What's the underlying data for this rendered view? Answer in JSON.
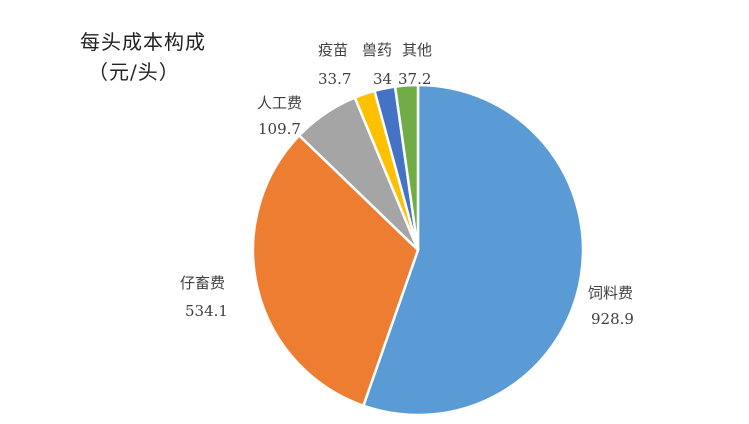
{
  "chart_data": {
    "type": "pie",
    "title": "每头成本构成",
    "subtitle": "（元/头）",
    "categories": [
      "饲料费",
      "仔畜费",
      "人工费",
      "疫苗",
      "兽药",
      "其他"
    ],
    "values": [
      928.9,
      534.1,
      109.7,
      33.7,
      34,
      37.2
    ],
    "value_labels": [
      "928.9",
      "534.1",
      "109.7",
      "33.7",
      "34",
      "37.2"
    ],
    "category_labels": [
      "饲料费",
      "仔畜费",
      "人工费",
      "疫苗",
      "兽药",
      "其他"
    ],
    "colors": [
      "#5B9BD5",
      "#ED7D31",
      "#A5A5A5",
      "#FFC000",
      "#4472C4",
      "#70AD47"
    ],
    "start_angle": "top",
    "direction": "clockwise",
    "legend": "none"
  }
}
